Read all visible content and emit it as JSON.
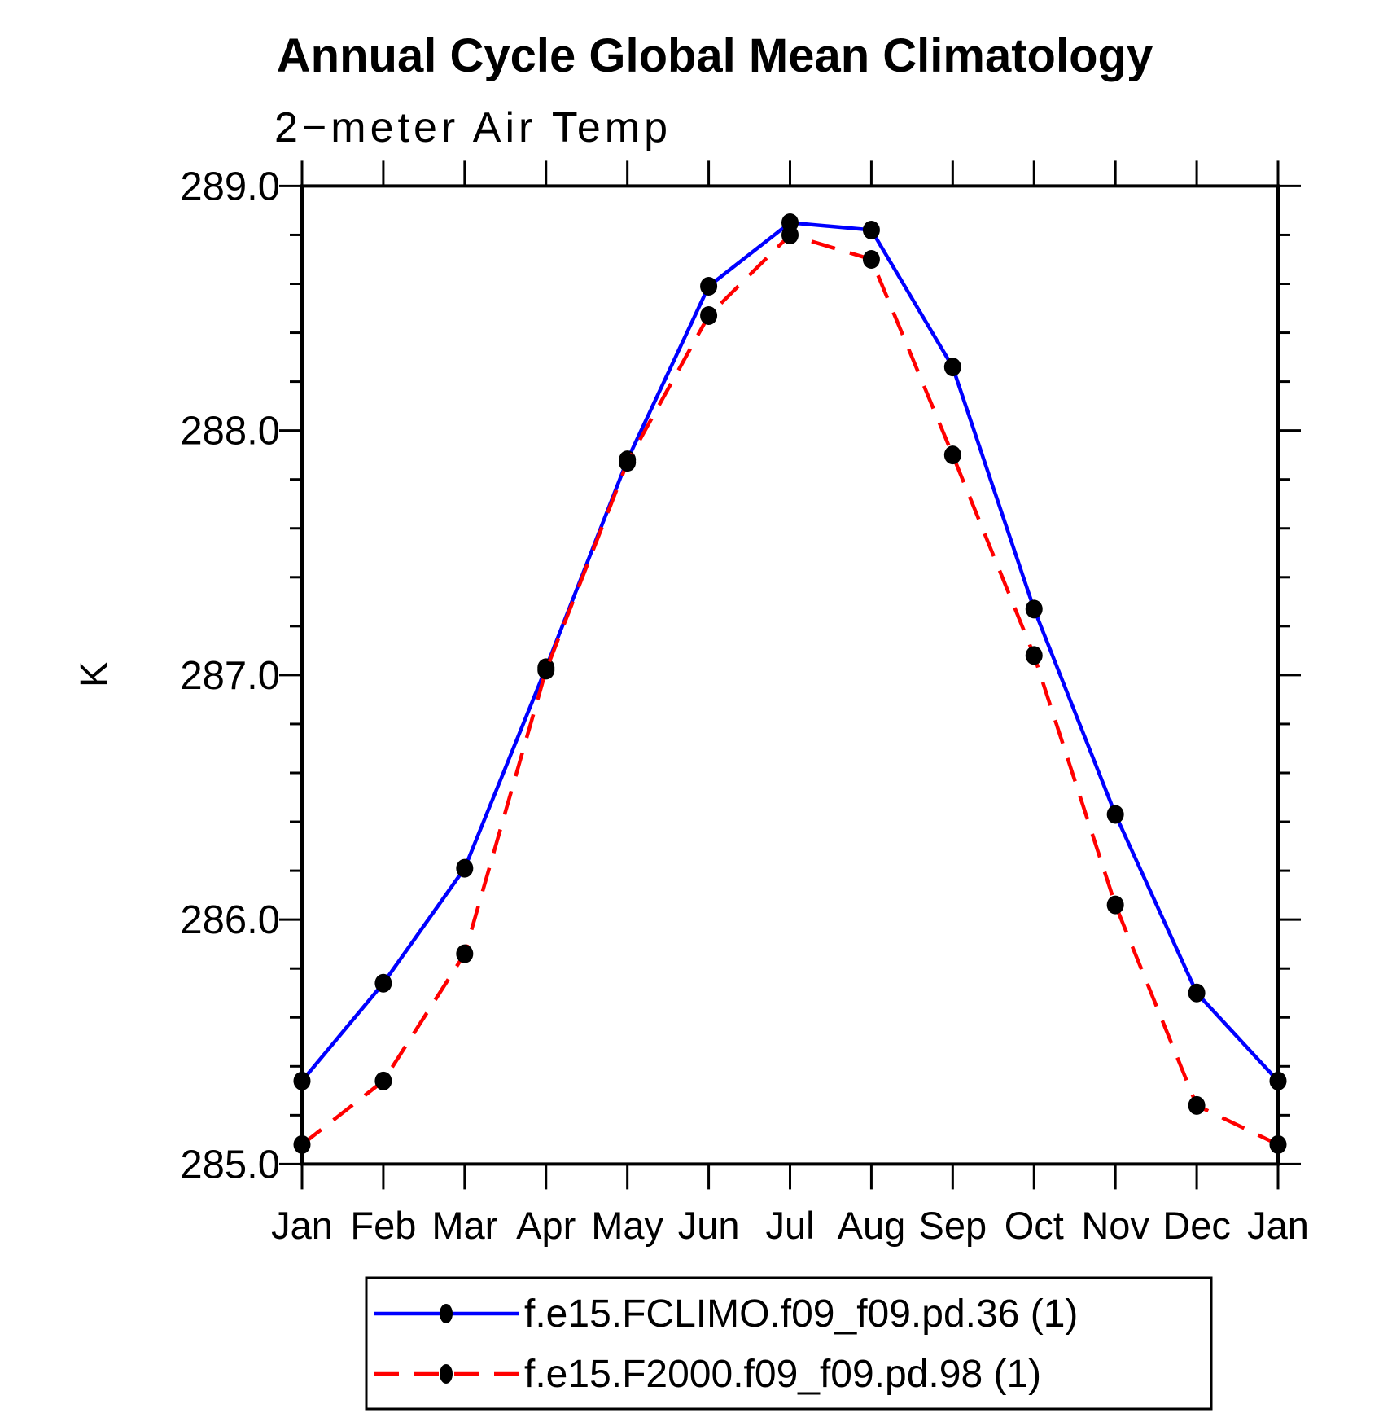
{
  "title": "Annual Cycle Global Mean Climatology",
  "chart_data": {
    "type": "line",
    "title": "Annual Cycle Global Mean Climatology",
    "subtitle": "2−meter Air Temp",
    "ylabel": "K",
    "xlabel": "",
    "grid": false,
    "legend_position": "bottom",
    "x_categories": [
      "Jan",
      "Feb",
      "Mar",
      "Apr",
      "May",
      "Jun",
      "Jul",
      "Aug",
      "Sep",
      "Oct",
      "Nov",
      "Dec",
      "Jan"
    ],
    "ylim": [
      285.0,
      289.0
    ],
    "y_major_step": 1.0,
    "y_minor_step": 0.2,
    "y_ticks": [
      "285.0",
      "286.0",
      "287.0",
      "288.0",
      "289.0"
    ],
    "axis_color": "#000000",
    "marker_color": "#000000",
    "series": [
      {
        "name": "f.e15.FCLIMO.f09_f09.pd.36 (1)",
        "color": "#0000ff",
        "line_style": "solid",
        "marker": "filled-circle",
        "values": [
          285.34,
          285.74,
          286.21,
          287.03,
          287.88,
          288.59,
          288.85,
          288.82,
          288.26,
          287.27,
          286.43,
          285.7,
          285.34
        ]
      },
      {
        "name": "f.e15.F2000.f09_f09.pd.98 (1)",
        "color": "#ff0000",
        "line_style": "dashed",
        "marker": "filled-circle",
        "values": [
          285.08,
          285.34,
          285.86,
          287.02,
          287.87,
          288.47,
          288.8,
          288.7,
          287.9,
          287.08,
          286.06,
          285.24,
          285.08
        ]
      }
    ]
  }
}
